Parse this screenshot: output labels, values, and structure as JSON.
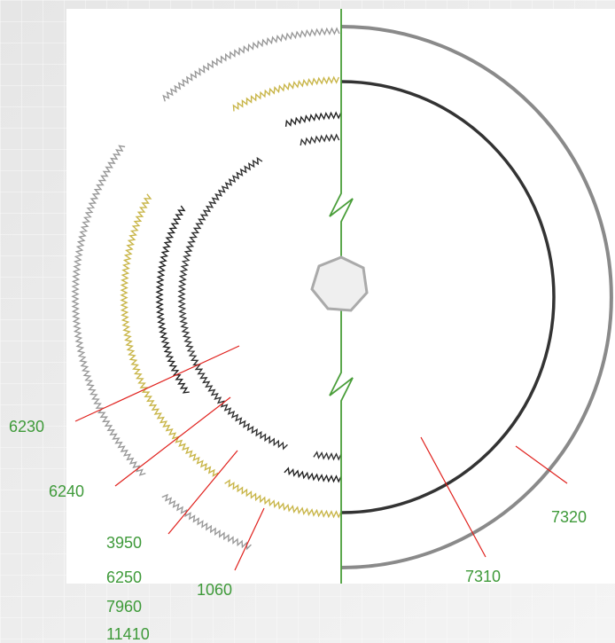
{
  "callouts": [
    "6230",
    "6240",
    "3950",
    "6250",
    "7960",
    "11410",
    "1060",
    "7310",
    "7320"
  ]
}
